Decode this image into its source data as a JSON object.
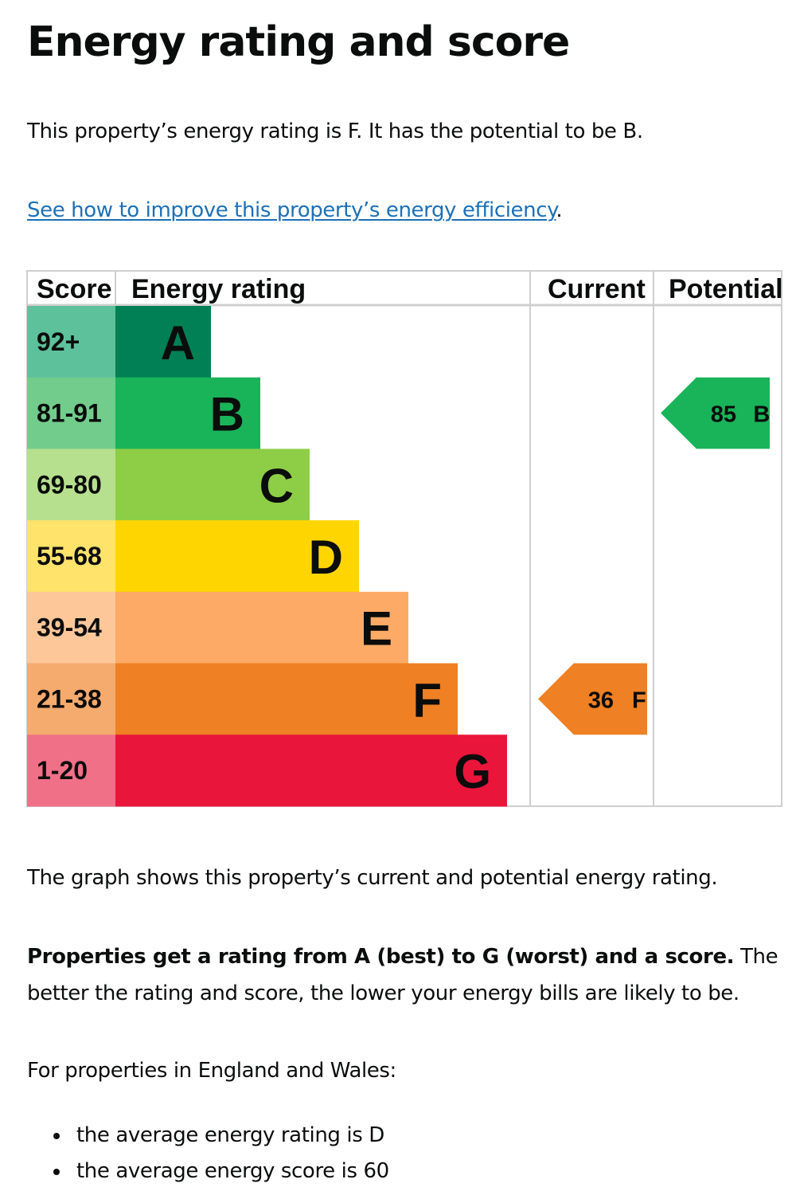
{
  "page": {
    "title": "Energy rating and score",
    "intro": "This property’s energy rating is F. It has the potential to be B.",
    "improve_link": "See how to improve this property’s energy efficiency",
    "improve_suffix": ".",
    "graph_note": "The graph shows this property’s current and potential energy rating.",
    "explainer_bold": "Properties get a rating from A (best) to G (worst) and a score.",
    "explainer_rest": " The better the rating and score, the lower your energy bills are likely to be.",
    "region_note": "For properties in England and Wales:",
    "averages": [
      "the average energy rating is D",
      "the average energy score is 60"
    ]
  },
  "colors": {
    "link": "#1d70b8",
    "text": "#0b0c0c",
    "grid": "#cfcfcf"
  },
  "chart_data": {
    "type": "bar",
    "headers": {
      "score": "Score",
      "rating": "Energy rating",
      "current": "Current",
      "potential": "Potential"
    },
    "bands": [
      {
        "range": "92+",
        "letter": "A",
        "color": "#008054",
        "score_color": "#5dc19c"
      },
      {
        "range": "81-91",
        "letter": "B",
        "color": "#19b459",
        "score_color": "#72cc8c"
      },
      {
        "range": "69-80",
        "letter": "C",
        "color": "#8dce46",
        "score_color": "#b6e08e"
      },
      {
        "range": "55-68",
        "letter": "D",
        "color": "#ffd500",
        "score_color": "#ffe36a"
      },
      {
        "range": "39-54",
        "letter": "E",
        "color": "#fcaa65",
        "score_color": "#fdc79a"
      },
      {
        "range": "21-38",
        "letter": "F",
        "color": "#ef8023",
        "score_color": "#f5aa6e"
      },
      {
        "range": "1-20",
        "letter": "G",
        "color": "#e9153b",
        "score_color": "#f07088"
      }
    ],
    "current": {
      "score": 36,
      "letter": "F",
      "label": "36 F",
      "color": "#ef8023"
    },
    "potential": {
      "score": 85,
      "letter": "B",
      "label": "85 B",
      "color": "#19b459"
    }
  }
}
